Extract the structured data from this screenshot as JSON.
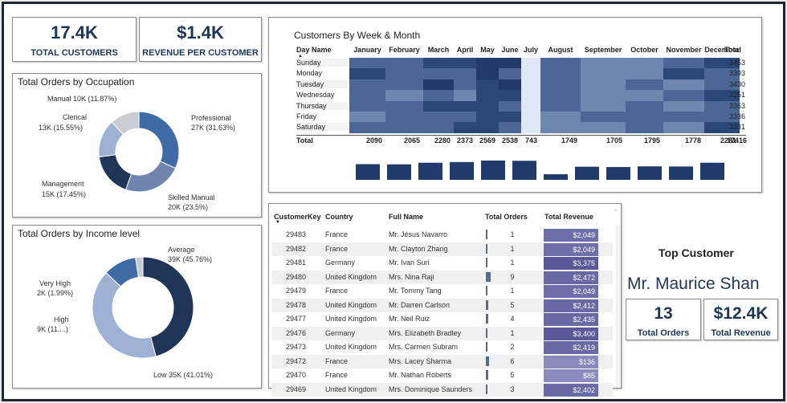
{
  "kpis": {
    "total_customers": {
      "value": "17.4K",
      "label": "TOTAL CUSTOMERS"
    },
    "revenue_per_customer": {
      "value": "$1.4K",
      "label": "REVENUE PER CUSTOMER"
    }
  },
  "occupation_chart": {
    "title": "Total Orders by Occupation",
    "labels": {
      "manual": "Manual 10K (11.87%)",
      "clerical_1": "Clerical",
      "clerical_2": "13K (15.55%)",
      "professional_1": "Professional",
      "professional_2": "27K (31.63%)",
      "management_1": "Management",
      "management_2": "15K (17.45%)",
      "skilled_1": "Skilled Manual",
      "skilled_2": "20K (23.5%)"
    }
  },
  "income_chart": {
    "title": "Total Orders by Income level",
    "labels": {
      "average_1": "Average",
      "average_2": "39K (45.76%)",
      "very_high_1": "Very High",
      "very_high_2": "2K (1.99%)",
      "high_1": "High",
      "high_2": "9K (11....)",
      "low": "Low 35K (41.01%)"
    }
  },
  "heatmap": {
    "title": "Customers By Week & Month",
    "day_header": "Day Name",
    "total_header": "Total",
    "total_row_label": "Total",
    "months": [
      "January",
      "February",
      "March",
      "April",
      "May",
      "June",
      "July",
      "August",
      "September",
      "October",
      "November",
      "December"
    ],
    "days": [
      "Sunday",
      "Monday",
      "Tuesday",
      "Wednesday",
      "Thursday",
      "Friday",
      "Saturday"
    ],
    "row_totals": [
      "3453",
      "3393",
      "3430",
      "3251",
      "3353",
      "3336",
      "3331"
    ],
    "col_totals": [
      "2090",
      "2065",
      "2280",
      "2373",
      "2569",
      "2538",
      "743",
      "1749",
      "1705",
      "1795",
      "1778",
      "2281"
    ],
    "grand_total": "17416",
    "heat_colors": [
      "#9db0ce",
      "#6d87b1",
      "#4c6797",
      "#2b477a",
      "#1f3a6b"
    ]
  },
  "customer_table": {
    "headers": {
      "key": "CustomerKey",
      "country": "Country",
      "name": "Full Name",
      "orders": "Total Orders",
      "revenue": "Total Revenue"
    },
    "rows": [
      {
        "key": "29483",
        "country": "France",
        "name": "Mr. Jésus Navarro",
        "orders": "1",
        "revenue": "$2,049"
      },
      {
        "key": "29482",
        "country": "France",
        "name": "Mr. Clayton Zhang",
        "orders": "1",
        "revenue": "$2,049"
      },
      {
        "key": "29481",
        "country": "Germany",
        "name": "Mr. Ivan Suri",
        "orders": "1",
        "revenue": "$3,375"
      },
      {
        "key": "29480",
        "country": "United Kingdom",
        "name": "Mrs. Nina Raji",
        "orders": "9",
        "revenue": "$2,472"
      },
      {
        "key": "29479",
        "country": "France",
        "name": "Mr. Tommy Tang",
        "orders": "1",
        "revenue": "$2,049"
      },
      {
        "key": "29478",
        "country": "United Kingdom",
        "name": "Mr. Darren Carlson",
        "orders": "5",
        "revenue": "$2,412"
      },
      {
        "key": "29477",
        "country": "United Kingdom",
        "name": "Mr. Neil Ruiz",
        "orders": "4",
        "revenue": "$2,435"
      },
      {
        "key": "29476",
        "country": "Germany",
        "name": "Mrs. Elizabeth Bradley",
        "orders": "1",
        "revenue": "$3,400"
      },
      {
        "key": "29473",
        "country": "United Kingdom",
        "name": "Mrs. Carmen Subram",
        "orders": "2",
        "revenue": "$2,419"
      },
      {
        "key": "29472",
        "country": "France",
        "name": "Mrs. Lacey Sharma",
        "orders": "6",
        "revenue": "$136"
      },
      {
        "key": "29470",
        "country": "France",
        "name": "Mr. Nathan Roberts",
        "orders": "5",
        "revenue": "$85"
      },
      {
        "key": "29469",
        "country": "United Kingdom",
        "name": "Mrs. Dominique Saunders",
        "orders": "3",
        "revenue": "$2,402"
      }
    ]
  },
  "top_customer": {
    "title": "Top Customer",
    "name": "Mr. Maurice Shan",
    "orders_value": "13",
    "orders_label": "Total Orders",
    "revenue_value": "$12.4K",
    "revenue_label": "Total Revenue"
  },
  "chart_data": [
    {
      "type": "pie",
      "title": "Total Orders by Occupation",
      "labels": [
        "Professional",
        "Skilled Manual",
        "Management",
        "Clerical",
        "Manual"
      ],
      "values": [
        27,
        20,
        15,
        13,
        10
      ],
      "percents": [
        31.63,
        23.5,
        17.45,
        15.55,
        11.87
      ],
      "colors": [
        "#3e6aa6",
        "#6f85ad",
        "#1f3557",
        "#9cb1d3",
        "#c8ccd3"
      ]
    },
    {
      "type": "pie",
      "title": "Total Orders by Income level",
      "labels": [
        "Average",
        "Low",
        "High",
        "Very High"
      ],
      "values": [
        39,
        35,
        9,
        2
      ],
      "percents": [
        45.76,
        41.01,
        11.0,
        1.99
      ],
      "colors": [
        "#1f3557",
        "#9cb1d3",
        "#3e6aa6",
        "#c8ccd3"
      ]
    },
    {
      "type": "heatmap",
      "title": "Customers By Week & Month",
      "x": [
        "January",
        "February",
        "March",
        "April",
        "May",
        "June",
        "July",
        "August",
        "September",
        "October",
        "November",
        "December"
      ],
      "y": [
        "Sunday",
        "Monday",
        "Tuesday",
        "Wednesday",
        "Thursday",
        "Friday",
        "Saturday"
      ],
      "levels": [
        [
          2,
          2,
          3,
          3,
          4,
          4,
          0,
          2,
          1,
          1,
          2,
          3
        ],
        [
          3,
          2,
          2,
          2,
          4,
          2,
          0,
          2,
          1,
          1,
          3,
          2
        ],
        [
          2,
          2,
          4,
          2,
          3,
          4,
          0,
          2,
          1,
          2,
          1,
          2
        ],
        [
          2,
          1,
          2,
          1,
          3,
          3,
          0,
          2,
          1,
          1,
          2,
          3
        ],
        [
          2,
          2,
          3,
          3,
          3,
          2,
          0,
          2,
          1,
          2,
          1,
          2
        ],
        [
          1,
          2,
          2,
          2,
          3,
          3,
          0,
          1,
          2,
          2,
          2,
          2
        ],
        [
          2,
          2,
          2,
          3,
          3,
          2,
          0,
          1,
          1,
          2,
          1,
          3
        ]
      ],
      "col_totals": [
        2090,
        2065,
        2280,
        2373,
        2569,
        2538,
        743,
        1749,
        1705,
        1795,
        1778,
        2281
      ],
      "row_totals": [
        3453,
        3393,
        3430,
        3251,
        3353,
        3336,
        3331
      ],
      "grand_total": 17416
    },
    {
      "type": "table",
      "title": "",
      "columns": [
        "CustomerKey",
        "Country",
        "Full Name",
        "Total Orders",
        "Total Revenue"
      ],
      "revenue_values": [
        2049,
        2049,
        3375,
        2472,
        2049,
        2412,
        2435,
        3400,
        2419,
        136,
        85,
        2402
      ],
      "order_values": [
        1,
        1,
        1,
        9,
        1,
        5,
        4,
        1,
        2,
        6,
        5,
        3
      ]
    }
  ]
}
